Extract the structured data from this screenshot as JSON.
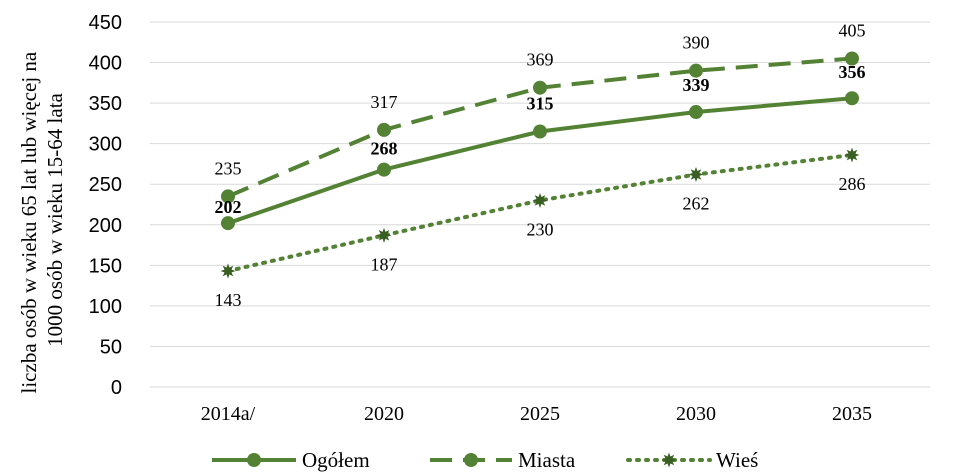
{
  "chart_data": {
    "type": "line",
    "categories": [
      "2014a/",
      "2020",
      "2025",
      "2030",
      "2035"
    ],
    "ylabel": "liczba osób w wieku 65 lat lub więcej  na 1000 osób w wieku 15-64 lata",
    "ylabel_lines": [
      "liczba osób w wieku 65 lat lub więcej  na",
      "1000 osób w wieku 15-64 lata"
    ],
    "ylim": [
      0,
      450
    ],
    "yticks": [
      "0",
      "50",
      "100",
      "150",
      "200",
      "250",
      "300",
      "350",
      "400",
      "450"
    ],
    "grid": true,
    "legend": "bottom",
    "series": [
      {
        "name": "Ogółem",
        "values": [
          202,
          268,
          315,
          339,
          356
        ],
        "labels": [
          "202",
          "268",
          "315",
          "339",
          "356"
        ],
        "style": "solid",
        "marker": "circle",
        "bold_labels": true,
        "color": "#548235"
      },
      {
        "name": "Miasta",
        "values": [
          235,
          317,
          369,
          390,
          405
        ],
        "labels": [
          "235",
          "317",
          "369",
          "390",
          "405"
        ],
        "style": "dashed",
        "marker": "circle",
        "bold_labels": false,
        "color": "#548235"
      },
      {
        "name": "Wieś",
        "values": [
          143,
          187,
          230,
          262,
          286
        ],
        "labels": [
          "143",
          "187",
          "230",
          "262",
          "286"
        ],
        "style": "dotted",
        "marker": "star",
        "bold_labels": false,
        "color": "#548235"
      }
    ]
  }
}
